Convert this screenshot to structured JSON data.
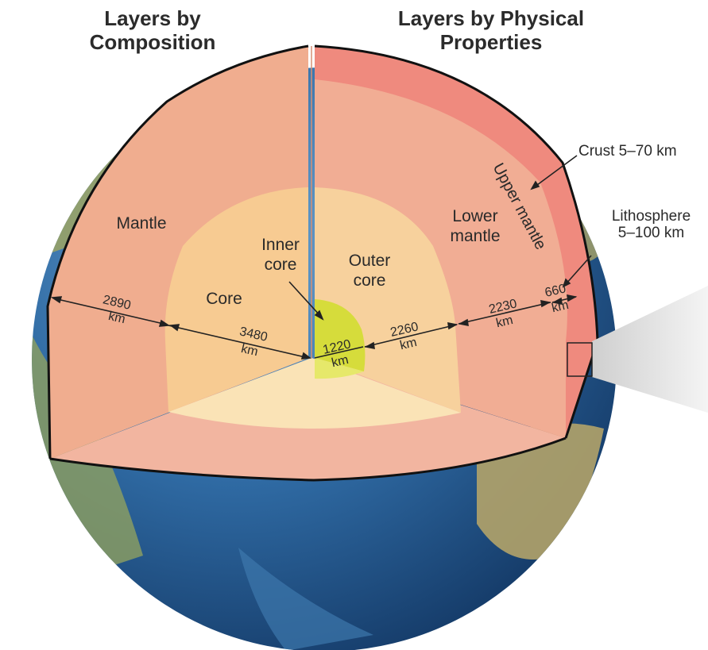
{
  "headings": {
    "composition_line1": "Layers by",
    "composition_line2": "Composition",
    "physical_line1": "Layers by Physical",
    "physical_line2": "Properties"
  },
  "labels": {
    "mantle": "Mantle",
    "core": "Core",
    "inner_core_line1": "Inner",
    "inner_core_line2": "core",
    "outer_core_line1": "Outer",
    "outer_core_line2": "core",
    "lower_mantle_line1": "Lower",
    "lower_mantle_line2": "mantle",
    "upper_mantle": "Upper mantle",
    "crust": "Crust 5–70 km",
    "lithosphere_line1": "Lithosphere",
    "lithosphere_line2": "5–100 km"
  },
  "dimensions": {
    "d2890": "2890",
    "d3480": "3480",
    "d1220": "1220",
    "d2260": "2260",
    "d2230": "2230",
    "d660": "660",
    "unit": "km"
  },
  "colors": {
    "ocean_dark": "#1f4f86",
    "ocean_light": "#5f97c6",
    "land": "#a8a765",
    "mantle": "#f0ad8f",
    "upper_mantle": "#ef8a7e",
    "core": "#f7cf98",
    "inner_core": "#d8dc3a",
    "outline": "#111111"
  }
}
